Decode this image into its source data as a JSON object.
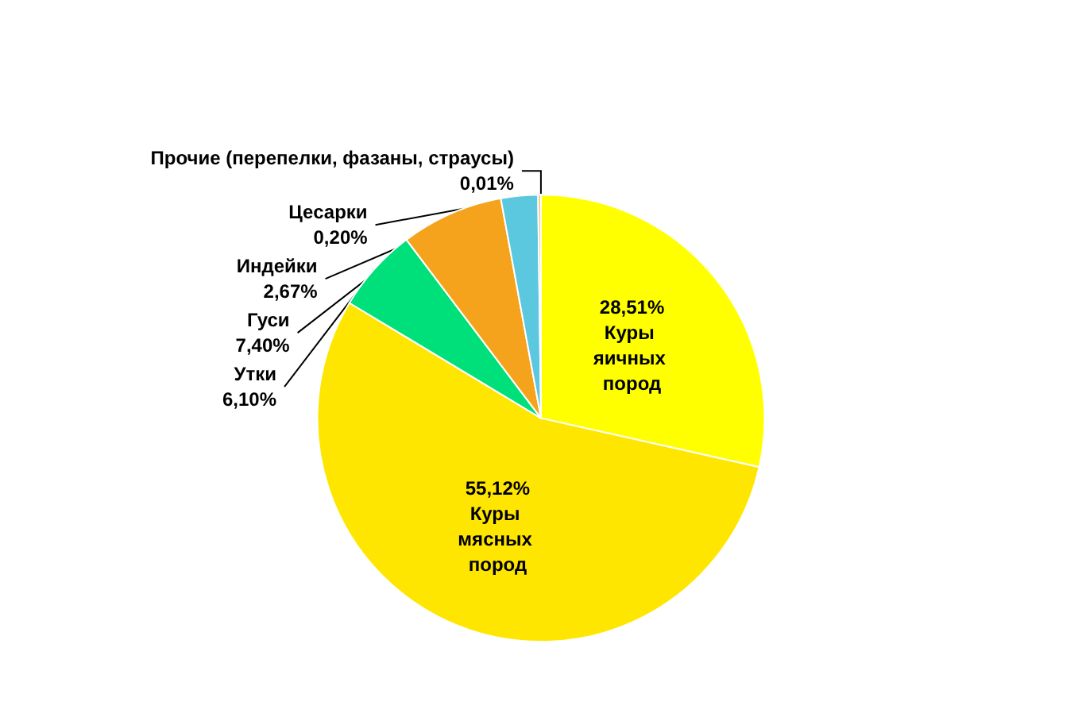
{
  "chart_data": {
    "type": "pie",
    "categories": [
      "Куры яичных пород",
      "Куры мясных пород",
      "Утки",
      "Гуси",
      "Индейки",
      "Цесарки",
      "Прочие (перепелки, фазаны, страусы)"
    ],
    "values": [
      28.51,
      55.12,
      6.1,
      7.4,
      2.67,
      0.2,
      0.01
    ],
    "value_labels": [
      "28,51%",
      "55,12%",
      "6,10%",
      "7,40%",
      "2,67%",
      "0,20%",
      "0,01%"
    ],
    "colors": [
      "#ffff00",
      "#ffe600",
      "#00e07a",
      "#f5a31c",
      "#5cc8e0",
      "#f0b060",
      "#e8e8c8"
    ],
    "legend": false
  }
}
